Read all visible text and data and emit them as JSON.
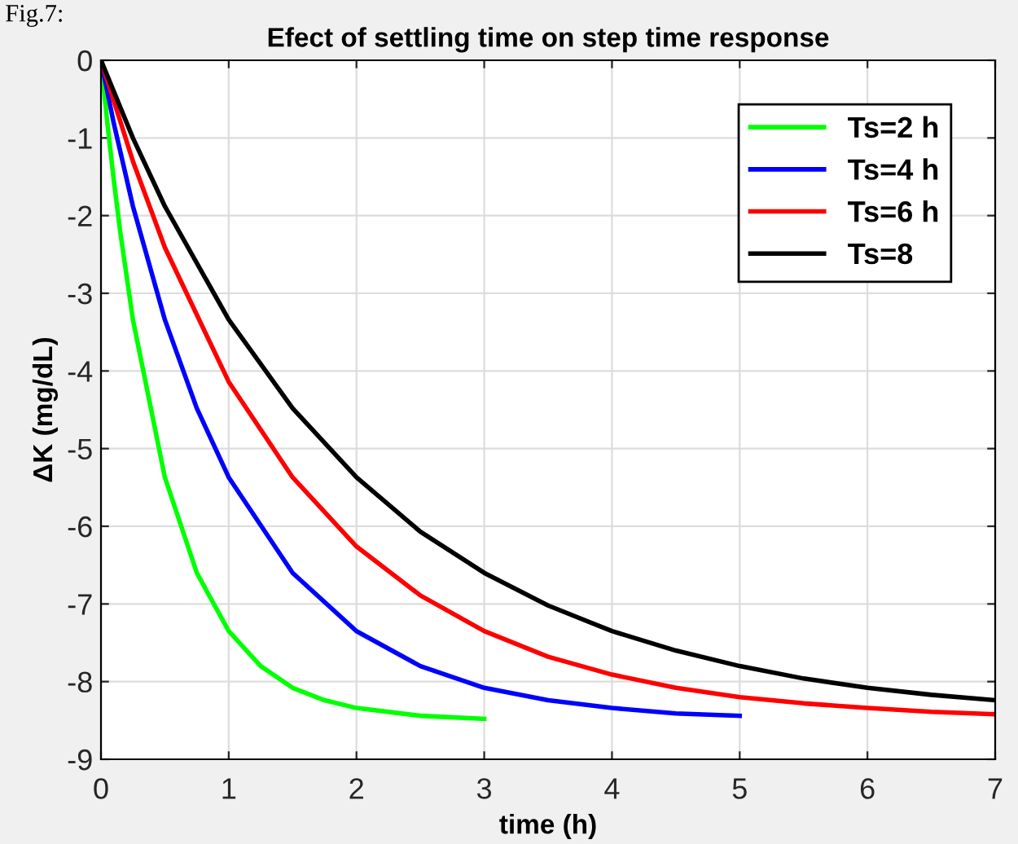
{
  "chart_data": {
    "type": "line",
    "title": "Efect of settling time on step time response",
    "xlabel": "time (h)",
    "ylabel": "ΔK (mg/dL)",
    "annotations": [
      "Fig.7:"
    ],
    "series": [
      {
        "name": "Ts=2 h",
        "color": "#00ff00",
        "x": [
          0,
          0.05,
          0.1,
          0.15,
          0.25,
          0.5,
          0.75,
          1,
          1.25,
          1.5,
          1.75,
          2,
          2.5,
          3
        ],
        "values": [
          0,
          -0.81,
          -1.54,
          -2.2,
          -3.34,
          -5.37,
          -6.6,
          -7.35,
          -7.8,
          -8.08,
          -8.24,
          -8.34,
          -8.44,
          -8.48
        ]
      },
      {
        "name": "Ts=4 h",
        "color": "#0000ff",
        "x": [
          0,
          0.1,
          0.25,
          0.5,
          0.75,
          1,
          1.5,
          2,
          2.5,
          3,
          3.5,
          4,
          4.5,
          5
        ],
        "values": [
          0,
          -0.81,
          -1.88,
          -3.34,
          -4.48,
          -5.37,
          -6.6,
          -7.35,
          -7.8,
          -8.08,
          -8.24,
          -8.34,
          -8.41,
          -8.44
        ]
      },
      {
        "name": "Ts=6 h",
        "color": "#ff0000",
        "x": [
          0,
          0.25,
          0.5,
          1,
          1.5,
          2,
          2.5,
          3,
          3.5,
          4,
          4.5,
          5,
          5.5,
          6,
          6.5,
          7
        ],
        "values": [
          0,
          -1.3,
          -2.41,
          -4.14,
          -5.37,
          -6.26,
          -6.89,
          -7.35,
          -7.68,
          -7.91,
          -8.08,
          -8.2,
          -8.28,
          -8.34,
          -8.39,
          -8.42
        ]
      },
      {
        "name": "Ts=8",
        "color": "#000000",
        "x": [
          0,
          0.25,
          0.5,
          1,
          1.5,
          2,
          2.5,
          3,
          3.5,
          4,
          4.5,
          5,
          5.5,
          6,
          6.5,
          7
        ],
        "values": [
          0,
          -1.0,
          -1.88,
          -3.34,
          -4.48,
          -5.37,
          -6.07,
          -6.6,
          -7.02,
          -7.35,
          -7.6,
          -7.8,
          -7.96,
          -8.08,
          -8.17,
          -8.24
        ]
      }
    ],
    "xlim": [
      0,
      7
    ],
    "xticks": [
      0,
      1,
      2,
      3,
      4,
      5,
      6,
      7
    ],
    "ylim": [
      -9,
      0
    ],
    "yticks": [
      -9,
      -8,
      -7,
      -6,
      -5,
      -4,
      -3,
      -2,
      -1,
      0
    ],
    "grid": true,
    "legend": "top right",
    "line_style": "solid",
    "marker": "none"
  }
}
